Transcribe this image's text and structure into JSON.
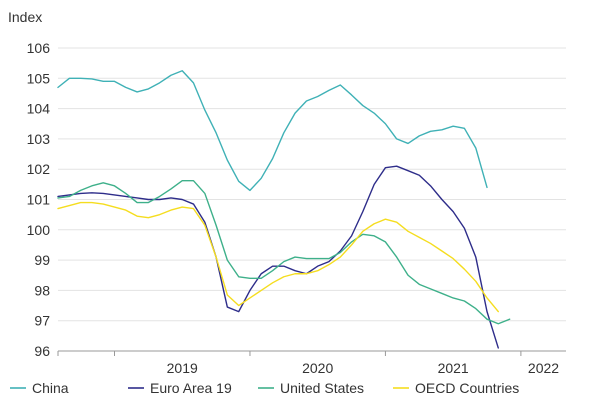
{
  "chart_data": {
    "type": "line",
    "title": "",
    "unit_label": "Index",
    "xlabel": "",
    "ylabel": "Index",
    "ylim": [
      96,
      106
    ],
    "yticks": [
      96,
      97,
      98,
      99,
      100,
      101,
      102,
      103,
      104,
      105,
      106
    ],
    "ytick_labels": [
      "96",
      "97",
      "98",
      "99",
      "100",
      "101",
      "102",
      "103",
      "104",
      "105",
      "106"
    ],
    "grid": true,
    "x_start": 2018.583,
    "x_end": 2022.333,
    "year_boundaries": [
      2019,
      2020,
      2021,
      2022
    ],
    "year_labels": [
      {
        "label": "2019",
        "x": 2019.5
      },
      {
        "label": "2020",
        "x": 2020.5
      },
      {
        "label": "2021",
        "x": 2021.5
      },
      {
        "label": "2022",
        "x": 2022.167
      }
    ],
    "x": [
      2018.583,
      2018.667,
      2018.75,
      2018.833,
      2018.917,
      2019.0,
      2019.083,
      2019.167,
      2019.25,
      2019.333,
      2019.417,
      2019.5,
      2019.583,
      2019.667,
      2019.75,
      2019.833,
      2019.917,
      2020.0,
      2020.083,
      2020.167,
      2020.25,
      2020.333,
      2020.417,
      2020.5,
      2020.583,
      2020.667,
      2020.75,
      2020.833,
      2020.917,
      2021.0,
      2021.083,
      2021.167,
      2021.25,
      2021.333,
      2021.417,
      2021.5,
      2021.583,
      2021.667,
      2021.75,
      2021.833,
      2021.917,
      2022.0,
      2022.083,
      2022.167,
      2022.25,
      2022.333
    ],
    "series": [
      {
        "name": "China",
        "color": "#3fb1b6",
        "values": [
          104.7,
          105.0,
          105.0,
          104.98,
          104.9,
          104.9,
          104.7,
          104.55,
          104.65,
          104.85,
          105.1,
          105.25,
          104.85,
          103.95,
          103.2,
          102.3,
          101.6,
          101.3,
          101.7,
          102.35,
          103.2,
          103.85,
          104.25,
          104.4,
          104.6,
          104.78,
          104.45,
          104.1,
          103.85,
          103.5,
          103.0,
          102.85,
          103.1,
          103.25,
          103.3,
          103.42,
          103.35,
          102.7,
          101.4,
          null,
          null,
          null,
          null,
          null,
          null,
          null
        ]
      },
      {
        "name": "Euro Area 19",
        "color": "#2e2d8a",
        "values": [
          101.1,
          101.15,
          101.2,
          101.22,
          101.2,
          101.15,
          101.1,
          101.05,
          101.0,
          101.0,
          101.05,
          101.0,
          100.85,
          100.25,
          99.1,
          97.45,
          97.3,
          98.0,
          98.55,
          98.8,
          98.8,
          98.65,
          98.55,
          98.8,
          98.95,
          99.3,
          99.8,
          100.6,
          101.5,
          102.05,
          102.1,
          101.95,
          101.8,
          101.45,
          101.0,
          100.6,
          100.05,
          99.1,
          97.3,
          96.1,
          null,
          null,
          null,
          null,
          null,
          null
        ]
      },
      {
        "name": "United States",
        "color": "#3eb08a",
        "values": [
          101.05,
          101.1,
          101.3,
          101.45,
          101.55,
          101.45,
          101.2,
          100.9,
          100.9,
          101.1,
          101.35,
          101.62,
          101.62,
          101.2,
          100.15,
          99.0,
          98.45,
          98.4,
          98.4,
          98.65,
          98.95,
          99.1,
          99.05,
          99.05,
          99.05,
          99.25,
          99.6,
          99.85,
          99.8,
          99.6,
          99.1,
          98.5,
          98.2,
          98.05,
          97.9,
          97.75,
          97.65,
          97.4,
          97.05,
          96.9,
          97.05,
          null,
          null,
          null,
          null,
          null
        ]
      },
      {
        "name": "OECD Countries",
        "color": "#f5dd1f",
        "values": [
          100.7,
          100.8,
          100.9,
          100.9,
          100.85,
          100.75,
          100.65,
          100.45,
          100.4,
          100.5,
          100.65,
          100.75,
          100.7,
          100.15,
          99.1,
          97.85,
          97.5,
          97.75,
          98.0,
          98.25,
          98.45,
          98.55,
          98.55,
          98.65,
          98.85,
          99.1,
          99.5,
          99.95,
          100.2,
          100.35,
          100.25,
          99.95,
          99.75,
          99.55,
          99.3,
          99.05,
          98.7,
          98.3,
          97.75,
          97.3,
          null,
          null,
          null,
          null,
          null,
          null
        ]
      }
    ],
    "legend": {
      "placement": "bottom",
      "entries": [
        "China",
        "Euro Area 19",
        "United States",
        "OECD Countries"
      ]
    }
  }
}
